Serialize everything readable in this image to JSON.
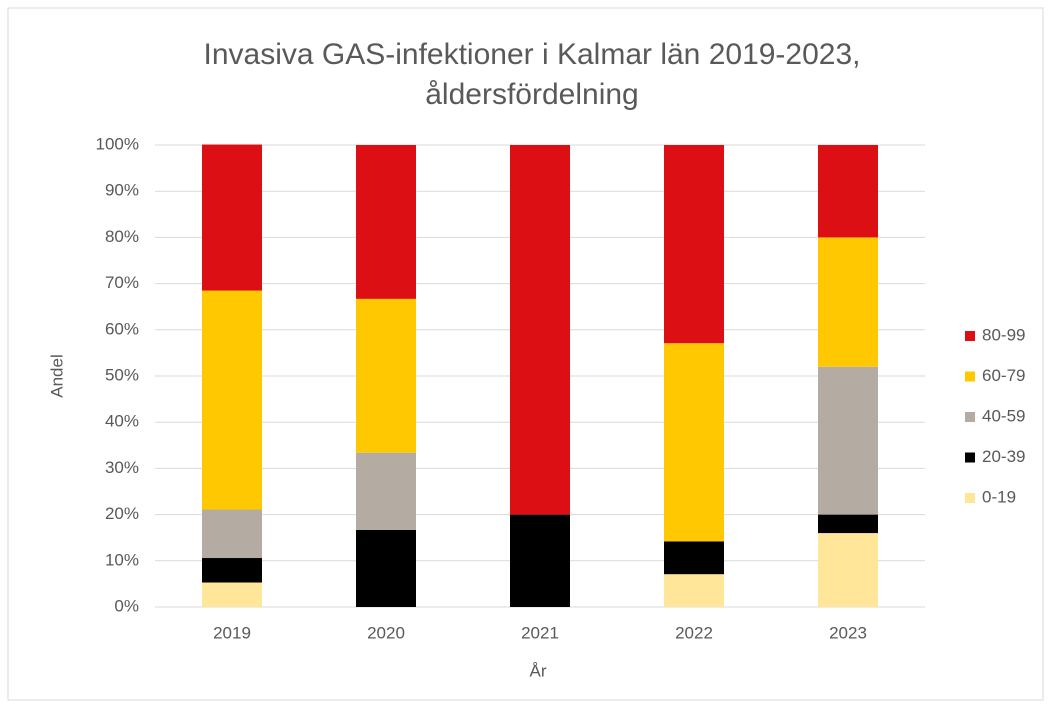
{
  "chart_data": {
    "type": "stacked_bar",
    "title": [
      "Invasiva  GAS-infektioner i Kalmar län 2019-2023,",
      "åldersfördelning"
    ],
    "x_label": "År",
    "y_label": "Andel",
    "categories": [
      "2019",
      "2020",
      "2021",
      "2022",
      "2023"
    ],
    "series": [
      {
        "name": "0-19",
        "color": "#ffe699",
        "values": [
          5.3,
          0,
          0,
          7.1,
          16
        ]
      },
      {
        "name": "20-39",
        "color": "#000000",
        "values": [
          5.3,
          16.7,
          20,
          7.1,
          4
        ]
      },
      {
        "name": "40-59",
        "color": "#b4aca2",
        "values": [
          10.5,
          16.7,
          0,
          0,
          32
        ]
      },
      {
        "name": "60-79",
        "color": "#ffc800",
        "values": [
          47.4,
          33.3,
          0,
          42.9,
          28
        ]
      },
      {
        "name": "80-99",
        "color": "#dc0f14",
        "values": [
          31.6,
          33.3,
          80,
          42.9,
          20
        ]
      }
    ],
    "ylim": [
      0,
      100
    ],
    "yticks": [
      {
        "value": 0,
        "label": "0%"
      },
      {
        "value": 10,
        "label": "10%"
      },
      {
        "value": 20,
        "label": "20%"
      },
      {
        "value": 30,
        "label": "30%"
      },
      {
        "value": 40,
        "label": "40%"
      },
      {
        "value": 50,
        "label": "50%"
      },
      {
        "value": 60,
        "label": "60%"
      },
      {
        "value": 70,
        "label": "70%"
      },
      {
        "value": 80,
        "label": "80%"
      },
      {
        "value": 90,
        "label": "90%"
      },
      {
        "value": 100,
        "label": "100%"
      }
    ],
    "grid": true,
    "legend": "right"
  }
}
